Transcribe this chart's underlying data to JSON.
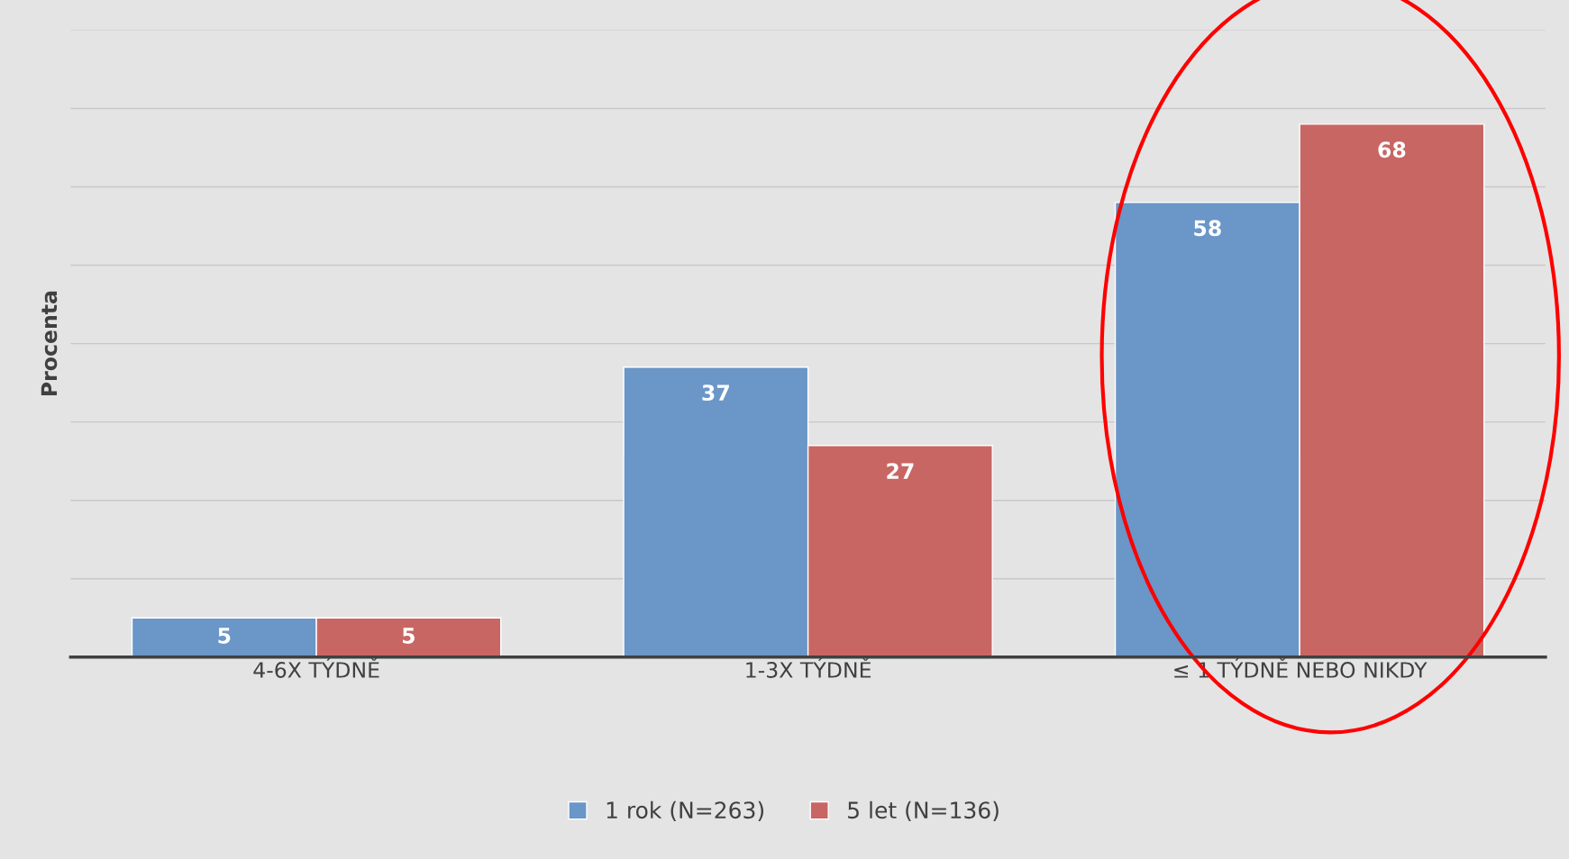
{
  "chart_data": {
    "type": "bar",
    "ylabel": "Procenta",
    "categories": [
      "4-6X TÝDNĚ",
      "1-3X TÝDNĚ",
      "≤ 1 TÝDNĚ NEBO NIKDY"
    ],
    "series": [
      {
        "name": "1 rok (N=263)",
        "color": "#6a96c8",
        "values": [
          5,
          37,
          58
        ]
      },
      {
        "name": "5 let (N=136)",
        "color": "#c86664",
        "values": [
          5,
          27,
          68
        ]
      }
    ],
    "ylim": [
      0,
      80
    ],
    "yticks": [
      {
        "value": 0,
        "label": null
      },
      {
        "value": 10,
        "label": null
      },
      {
        "value": 20,
        "label": null
      },
      {
        "value": 30,
        "label": null
      },
      {
        "value": 40,
        "label": null
      },
      {
        "value": 50,
        "label": null
      },
      {
        "value": 60,
        "label": null
      },
      {
        "value": 70,
        "label": null
      },
      {
        "value": 80,
        "label": null
      }
    ],
    "grid": "y",
    "legend": "bottom",
    "data_labels": true
  }
}
